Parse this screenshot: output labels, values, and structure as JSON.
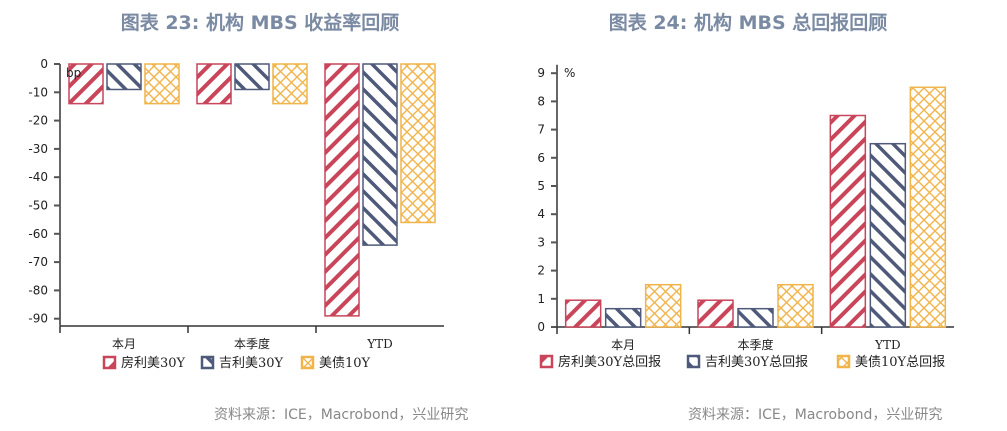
{
  "left": {
    "title": "图表 23:  机构 MBS 收益率回顾",
    "source": "资料来源：ICE，Macrobond，兴业研究"
  },
  "right": {
    "title": "图表 24: 机构 MBS 总回报回顾",
    "source": "资料来源：ICE，Macrobond，兴业研究"
  },
  "colors": {
    "red": "#c8455a",
    "navy": "#4f5a7a",
    "yellow": "#f0b44a",
    "title": "#7a8aa3"
  },
  "chart_data": [
    {
      "type": "bar",
      "title": "图表 23: 机构 MBS 收益率回顾",
      "ylabel": "bp",
      "xlabel": "",
      "categories": [
        "本月",
        "本季度",
        "YTD"
      ],
      "series": [
        {
          "name": "房利美30Y",
          "values": [
            -14,
            -14,
            -89
          ],
          "color": "#c8455a",
          "pattern": "diagonal-down"
        },
        {
          "name": "吉利美30Y",
          "values": [
            -9,
            -9,
            -64
          ],
          "color": "#4f5a7a",
          "pattern": "diagonal-up"
        },
        {
          "name": "美债10Y",
          "values": [
            -14,
            -14,
            -56
          ],
          "color": "#f0b44a",
          "pattern": "crosshatch"
        }
      ],
      "yticks": [
        0,
        -10,
        -20,
        -30,
        -40,
        -50,
        -60,
        -70,
        -80,
        -90
      ],
      "ylim": [
        -92.5,
        0
      ],
      "grid": false,
      "legend_position": "bottom"
    },
    {
      "type": "bar",
      "title": "图表 24: 机构 MBS 总回报回顾",
      "ylabel": "%",
      "xlabel": "",
      "categories": [
        "本月",
        "本季度",
        "YTD"
      ],
      "series": [
        {
          "name": "房利美30Y总回报",
          "values": [
            0.95,
            0.95,
            7.5
          ],
          "color": "#c8455a",
          "pattern": "diagonal-down"
        },
        {
          "name": "吉利美30Y总回报",
          "values": [
            0.65,
            0.65,
            6.5
          ],
          "color": "#4f5a7a",
          "pattern": "diagonal-up"
        },
        {
          "name": "美债10Y总回报",
          "values": [
            1.5,
            1.5,
            8.5
          ],
          "color": "#f0b44a",
          "pattern": "crosshatch"
        }
      ],
      "yticks": [
        0,
        1,
        2,
        3,
        4,
        5,
        6,
        7,
        8,
        9
      ],
      "ylim": [
        0,
        9.3
      ],
      "grid": false,
      "legend_position": "bottom"
    }
  ]
}
